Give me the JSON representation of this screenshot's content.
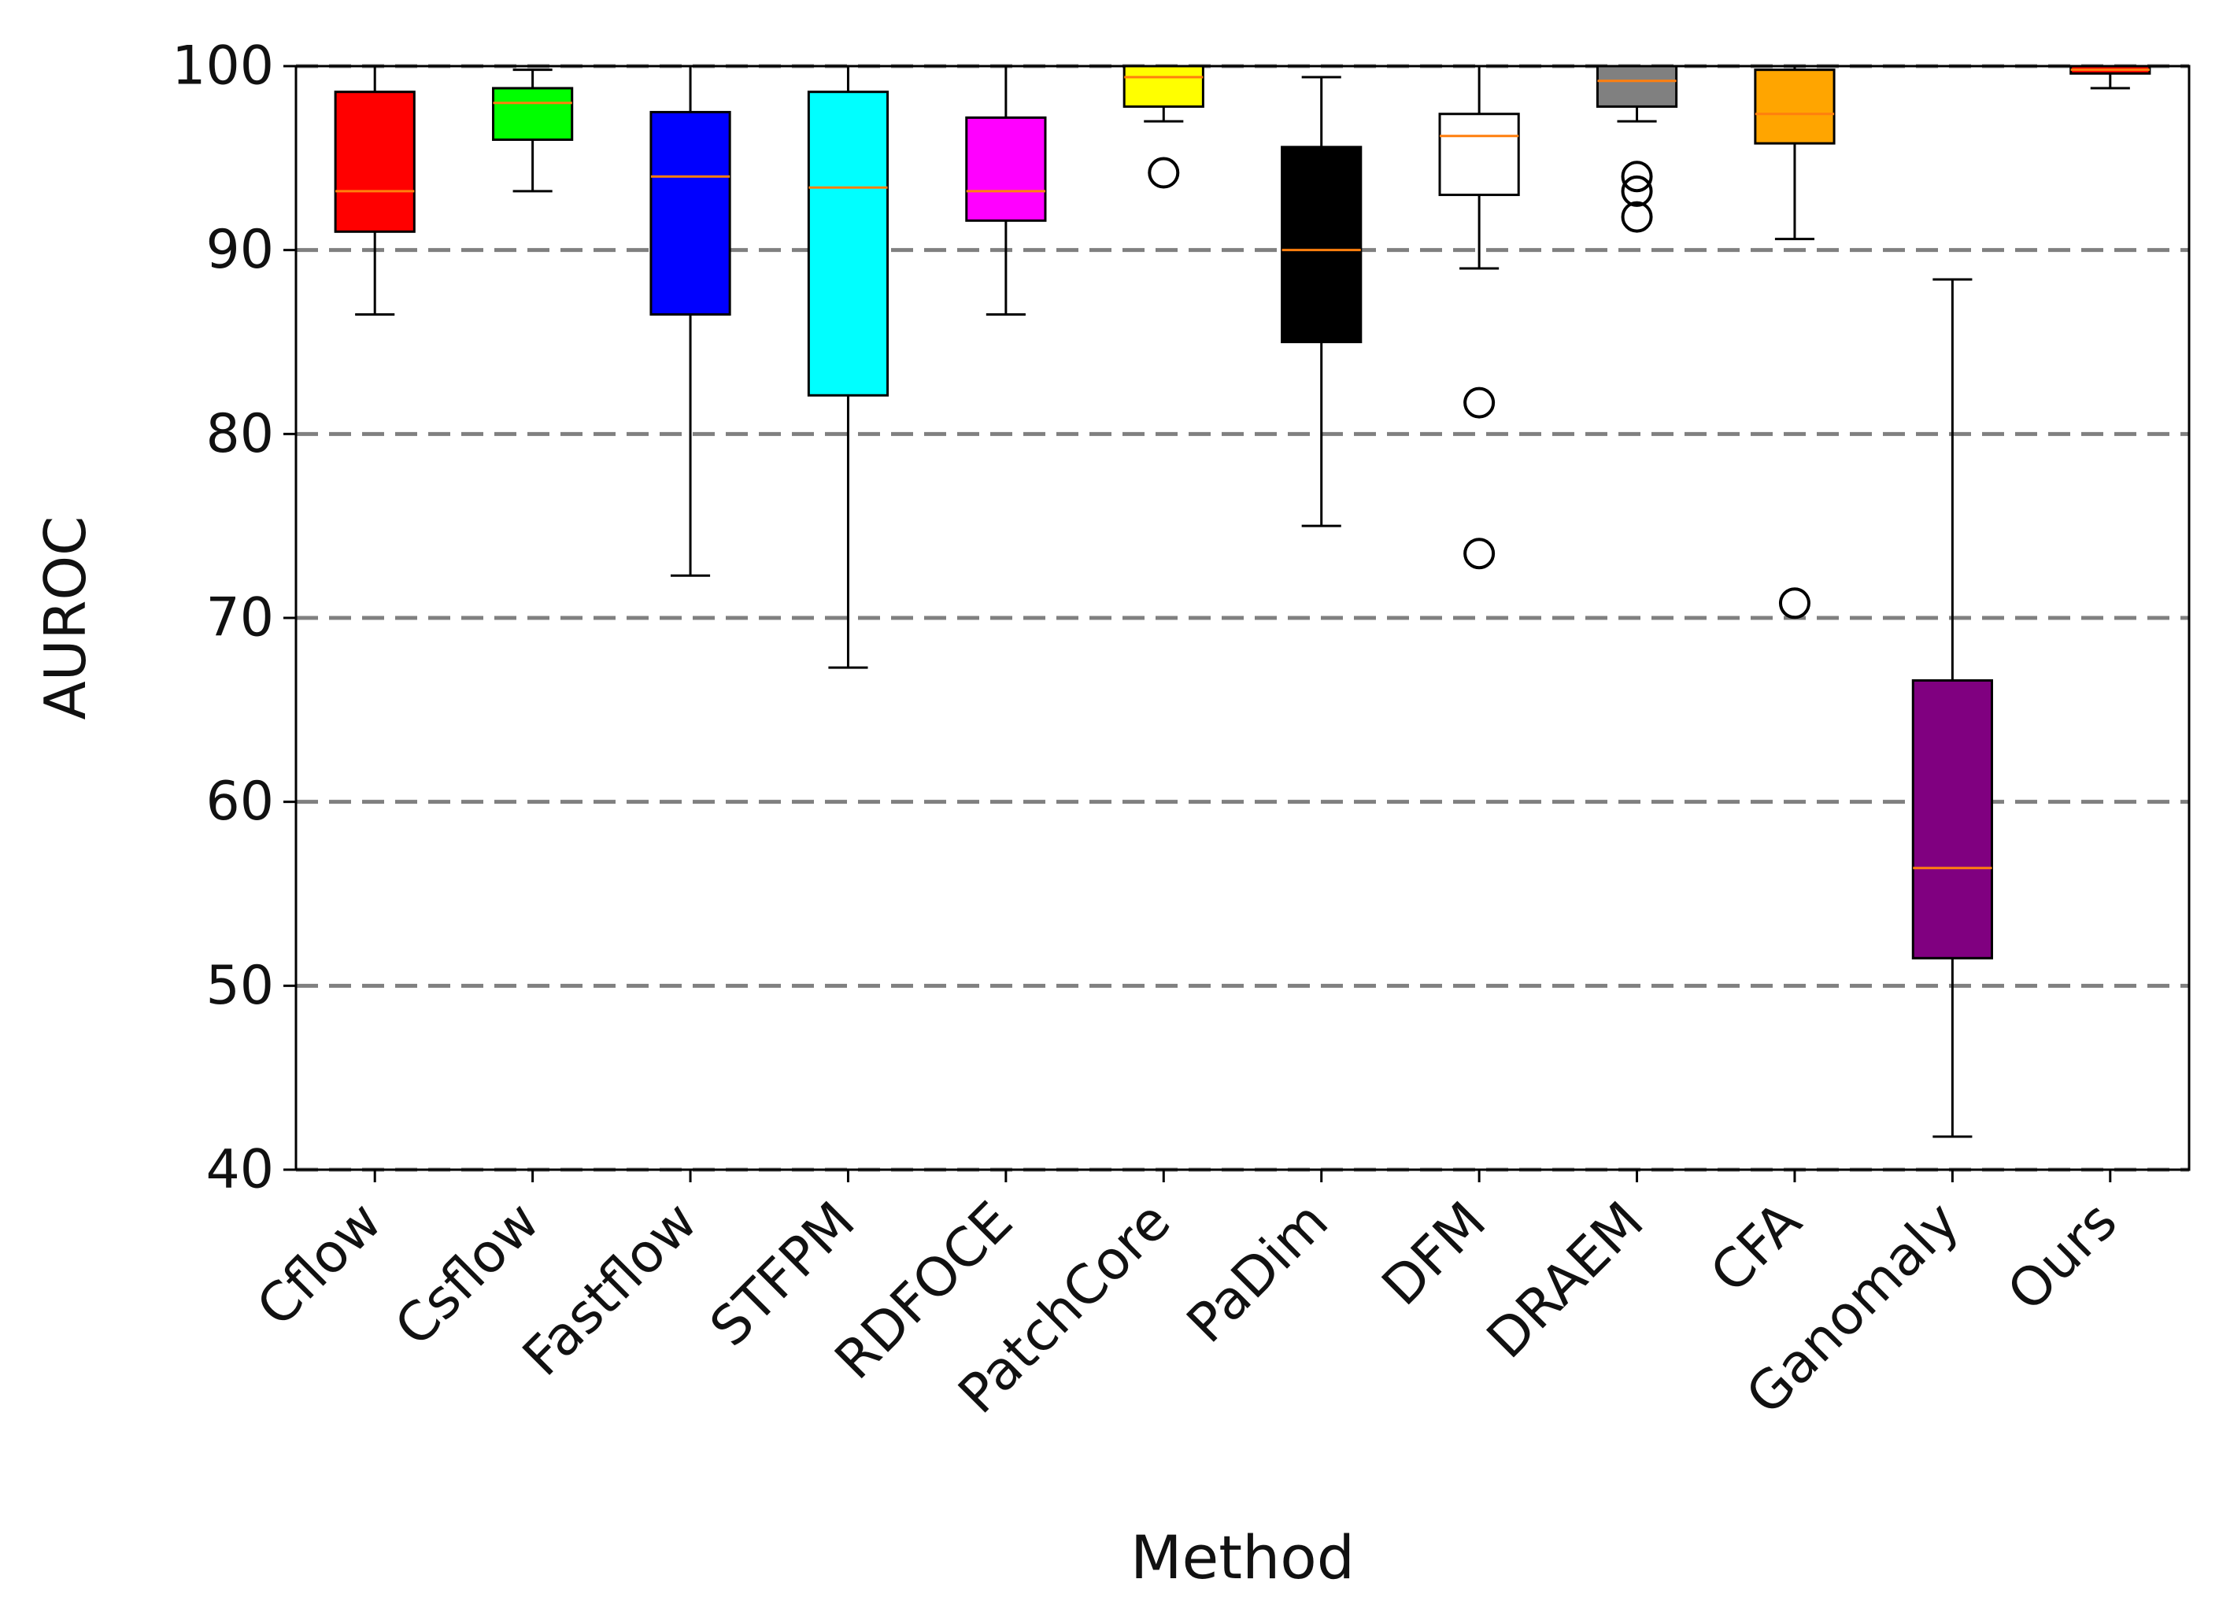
{
  "chart_data": {
    "type": "boxplot",
    "xlabel": "Method",
    "ylabel": "AUROC",
    "ylim": [
      40,
      100
    ],
    "yticks": [
      40,
      50,
      60,
      70,
      80,
      90,
      100
    ],
    "grid": {
      "axis": "y",
      "style": "dashed",
      "color": "#808080"
    },
    "legend": "none",
    "median_color": "#ff7f0e",
    "categories": [
      "Cflow",
      "Csflow",
      "Fastflow",
      "STFPM",
      "RDFOCE",
      "PatchCore",
      "PaDim",
      "DFM",
      "DRAEM",
      "CFA",
      "Ganomaly",
      "Ours"
    ],
    "boxes": [
      {
        "label": "Cflow",
        "whisker_low": 86.5,
        "q1": 91.0,
        "median": 93.2,
        "q3": 98.6,
        "whisker_high": 100.0,
        "outliers": [],
        "color": "#ff0000"
      },
      {
        "label": "Csflow",
        "whisker_low": 93.2,
        "q1": 96.0,
        "median": 98.0,
        "q3": 98.8,
        "whisker_high": 99.8,
        "outliers": [],
        "color": "#00ff00"
      },
      {
        "label": "Fastflow",
        "whisker_low": 72.3,
        "q1": 86.5,
        "median": 94.0,
        "q3": 97.5,
        "whisker_high": 100.0,
        "outliers": [],
        "color": "#0000ff"
      },
      {
        "label": "STFPM",
        "whisker_low": 67.3,
        "q1": 82.1,
        "median": 93.4,
        "q3": 98.6,
        "whisker_high": 100.0,
        "outliers": [],
        "color": "#00ffff"
      },
      {
        "label": "RDFOCE",
        "whisker_low": 86.5,
        "q1": 91.6,
        "median": 93.2,
        "q3": 97.2,
        "whisker_high": 100.0,
        "outliers": [],
        "color": "#ff00ff"
      },
      {
        "label": "PatchCore",
        "whisker_low": 97.0,
        "q1": 97.8,
        "median": 99.4,
        "q3": 100.0,
        "whisker_high": 100.0,
        "outliers": [
          94.2
        ],
        "color": "#ffff00"
      },
      {
        "label": "PaDim",
        "whisker_low": 75.0,
        "q1": 85.0,
        "median": 90.0,
        "q3": 95.6,
        "whisker_high": 99.4,
        "outliers": [],
        "color": "#000000"
      },
      {
        "label": "DFM",
        "whisker_low": 89.0,
        "q1": 93.0,
        "median": 96.2,
        "q3": 97.4,
        "whisker_high": 100.0,
        "outliers": [
          81.7,
          73.5
        ],
        "color": "#ffffff"
      },
      {
        "label": "DRAEM",
        "whisker_low": 97.0,
        "q1": 97.8,
        "median": 99.2,
        "q3": 100.0,
        "whisker_high": 100.0,
        "outliers": [
          94.0,
          93.2,
          91.8
        ],
        "color": "#808080"
      },
      {
        "label": "CFA",
        "whisker_low": 90.6,
        "q1": 95.8,
        "median": 97.4,
        "q3": 99.8,
        "whisker_high": 100.0,
        "outliers": [
          70.8
        ],
        "color": "#ffa500"
      },
      {
        "label": "Ganomaly",
        "whisker_low": 41.8,
        "q1": 51.5,
        "median": 56.4,
        "q3": 66.6,
        "whisker_high": 88.4,
        "outliers": [],
        "color": "#800080"
      },
      {
        "label": "Ours",
        "whisker_low": 98.8,
        "q1": 99.6,
        "median": 99.8,
        "q3": 100.0,
        "whisker_high": 100.0,
        "outliers": [],
        "color": "#ff0000"
      }
    ]
  }
}
